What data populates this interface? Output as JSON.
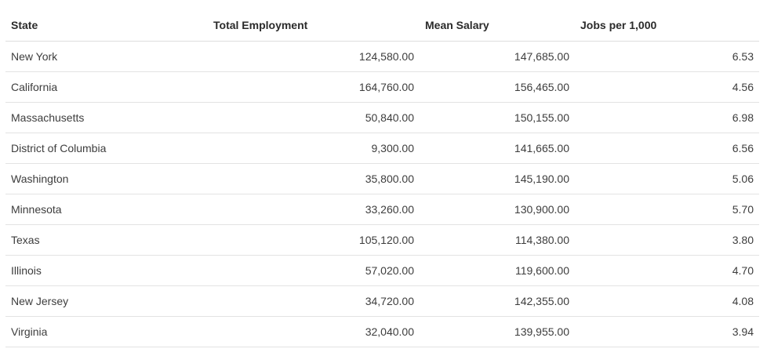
{
  "table": {
    "headers": {
      "state": "State",
      "total_employment": "Total Employment",
      "mean_salary": "Mean Salary",
      "jobs_per_1000": "Jobs per 1,000"
    },
    "rows": [
      {
        "state": "New York",
        "total_employment": "124,580.00",
        "mean_salary": "147,685.00",
        "jobs_per_1000": "6.53"
      },
      {
        "state": "California",
        "total_employment": "164,760.00",
        "mean_salary": "156,465.00",
        "jobs_per_1000": "4.56"
      },
      {
        "state": "Massachusetts",
        "total_employment": "50,840.00",
        "mean_salary": "150,155.00",
        "jobs_per_1000": "6.98"
      },
      {
        "state": "District of Columbia",
        "total_employment": "9,300.00",
        "mean_salary": "141,665.00",
        "jobs_per_1000": "6.56"
      },
      {
        "state": "Washington",
        "total_employment": "35,800.00",
        "mean_salary": "145,190.00",
        "jobs_per_1000": "5.06"
      },
      {
        "state": "Minnesota",
        "total_employment": "33,260.00",
        "mean_salary": "130,900.00",
        "jobs_per_1000": "5.70"
      },
      {
        "state": "Texas",
        "total_employment": "105,120.00",
        "mean_salary": "114,380.00",
        "jobs_per_1000": "3.80"
      },
      {
        "state": "Illinois",
        "total_employment": "57,020.00",
        "mean_salary": "119,600.00",
        "jobs_per_1000": "4.70"
      },
      {
        "state": "New Jersey",
        "total_employment": "34,720.00",
        "mean_salary": "142,355.00",
        "jobs_per_1000": "4.08"
      },
      {
        "state": "Virginia",
        "total_employment": "32,040.00",
        "mean_salary": "139,955.00",
        "jobs_per_1000": "3.94"
      }
    ]
  }
}
